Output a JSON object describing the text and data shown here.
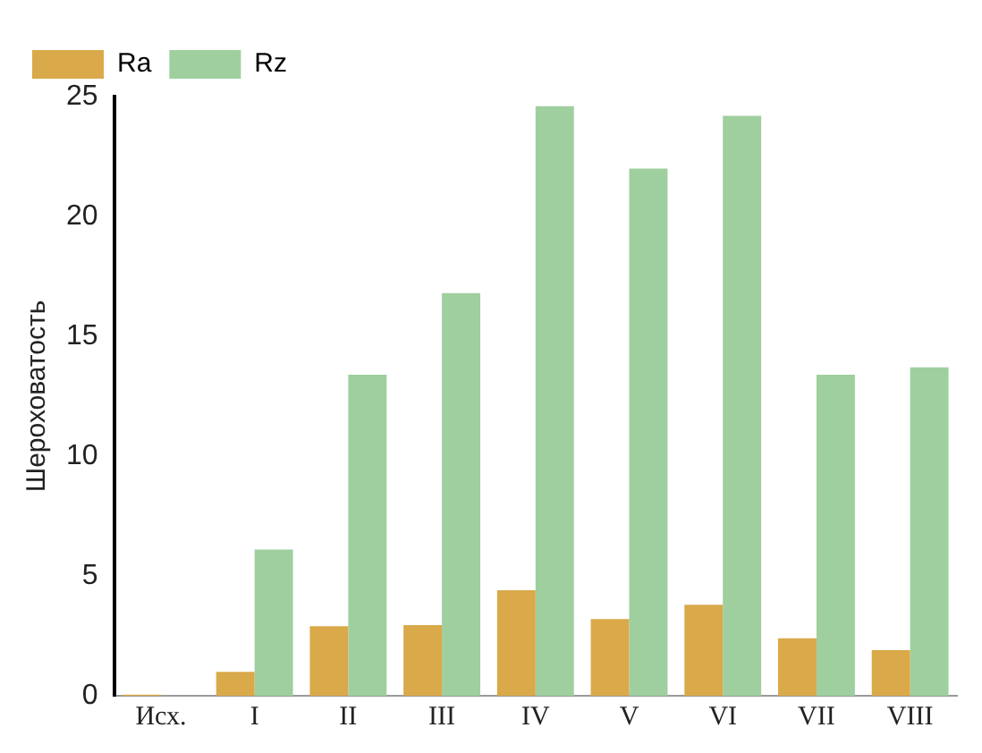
{
  "chart_data": {
    "type": "bar",
    "ylabel": "Шероховатость",
    "categories": [
      "Исх.",
      "I",
      "II",
      "III",
      "IV",
      "V",
      "VI",
      "VII",
      "VIII"
    ],
    "series": [
      {
        "name": "Ra",
        "color": "#d9a94a",
        "values": [
          0.05,
          1.0,
          2.9,
          2.95,
          4.4,
          3.2,
          3.8,
          2.4,
          1.9
        ]
      },
      {
        "name": "Rz",
        "color": "#9fcf9f",
        "values": [
          null,
          6.1,
          13.4,
          16.8,
          24.6,
          22.0,
          24.2,
          13.4,
          13.7
        ]
      }
    ],
    "ylim": [
      0,
      25
    ],
    "yticks": [
      0,
      5,
      10,
      15,
      20,
      25
    ],
    "grid": false,
    "legend": "top left"
  }
}
